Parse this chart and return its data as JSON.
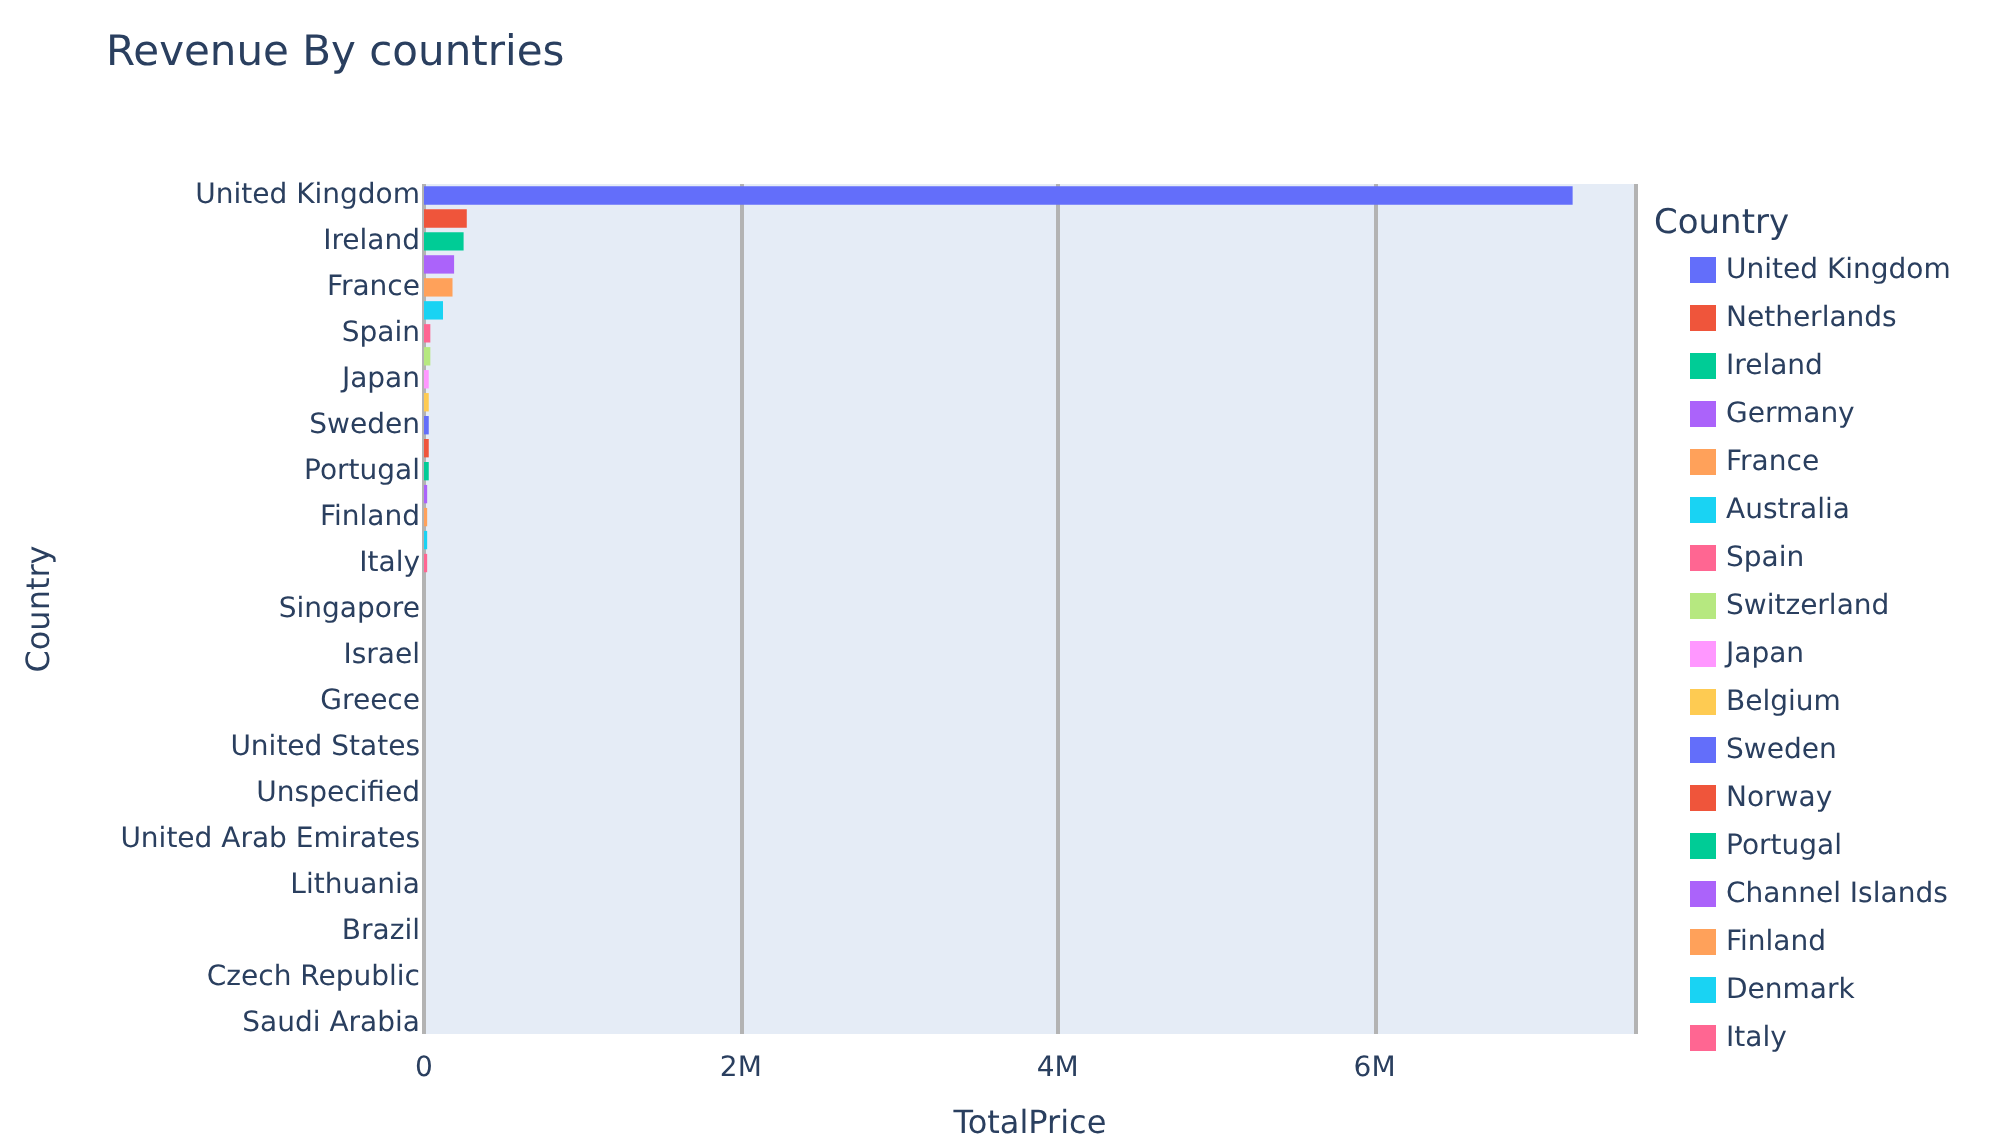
{
  "chart_data": {
    "type": "bar",
    "orientation": "horizontal",
    "stacked": true,
    "title": "Revenue By countries",
    "xlabel": "TotalPrice",
    "ylabel": "Country",
    "legend_title": "Country",
    "legend": "right",
    "grid": "x",
    "categories": [
      "United Kingdom",
      null,
      "Ireland",
      null,
      "France",
      null,
      "Spain",
      null,
      "Japan",
      null,
      "Sweden",
      null,
      "Portugal",
      null,
      "Finland",
      null,
      "Italy",
      null,
      "Singapore",
      null,
      "Israel",
      null,
      "Greece",
      null,
      "United States",
      null,
      "Unspecified",
      null,
      "United Arab Emirates",
      null,
      "Lithuania",
      null,
      "Brazil",
      null,
      "Czech Republic",
      null,
      "Saudi Arabia"
    ],
    "xlim": [
      0,
      7650000
    ],
    "xticks": [
      0,
      {
        "value": 2000000,
        "label": "2M"
      },
      {
        "value": 4000000,
        "label": "4M"
      },
      {
        "value": 6000000,
        "label": "6M"
      }
    ],
    "series": [
      {
        "name": "United Kingdom",
        "color": "#636efa",
        "values": [
          7250000,
          null,
          null,
          null,
          null,
          null,
          null,
          null,
          null,
          null,
          null,
          null,
          null,
          null,
          null,
          null,
          null,
          null,
          null,
          null,
          null,
          null,
          null,
          null,
          null,
          null,
          null,
          null,
          null,
          null,
          null,
          null,
          null,
          null,
          null,
          null,
          null
        ]
      },
      {
        "name": "Netherlands",
        "color": "#ef553b",
        "values": [
          null,
          270000,
          null,
          null,
          null,
          null,
          null,
          null,
          null,
          null,
          null,
          null,
          null,
          null,
          null,
          null,
          null,
          null,
          null,
          null,
          null,
          null,
          null,
          null,
          null,
          null,
          null,
          null,
          null,
          null,
          null,
          null,
          null,
          null,
          null,
          null,
          null
        ]
      },
      {
        "name": "Ireland",
        "color": "#00cc96",
        "values": [
          null,
          null,
          250000,
          null,
          null,
          null,
          null,
          null,
          null,
          null,
          null,
          null,
          null,
          null,
          null,
          null,
          null,
          null,
          null,
          null,
          null,
          null,
          null,
          null,
          null,
          null,
          null,
          null,
          null,
          null,
          null,
          null,
          null,
          null,
          null,
          null,
          null
        ]
      },
      {
        "name": "Germany",
        "color": "#ab63fa",
        "values": [
          null,
          null,
          null,
          190000,
          null,
          null,
          null,
          null,
          null,
          null,
          null,
          null,
          null,
          null,
          null,
          null,
          null,
          null,
          null,
          null,
          null,
          null,
          null,
          null,
          null,
          null,
          null,
          null,
          null,
          null,
          null,
          null,
          null,
          null,
          null,
          null,
          null
        ]
      },
      {
        "name": "France",
        "color": "#ffa15a",
        "values": [
          null,
          null,
          null,
          null,
          180000,
          null,
          null,
          null,
          null,
          null,
          null,
          null,
          null,
          null,
          null,
          null,
          null,
          null,
          null,
          null,
          null,
          null,
          null,
          null,
          null,
          null,
          null,
          null,
          null,
          null,
          null,
          null,
          null,
          null,
          null,
          null,
          null
        ]
      },
      {
        "name": "Australia",
        "color": "#19d3f3",
        "values": [
          null,
          null,
          null,
          null,
          null,
          120000,
          null,
          null,
          null,
          null,
          null,
          null,
          null,
          null,
          null,
          null,
          null,
          null,
          null,
          null,
          null,
          null,
          null,
          null,
          null,
          null,
          null,
          null,
          null,
          null,
          null,
          null,
          null,
          null,
          null,
          null,
          null
        ]
      },
      {
        "name": "Spain",
        "color": "#ff6692",
        "values": [
          null,
          null,
          null,
          null,
          null,
          null,
          40000,
          null,
          null,
          null,
          null,
          null,
          null,
          null,
          null,
          null,
          null,
          null,
          null,
          null,
          null,
          null,
          null,
          null,
          null,
          null,
          null,
          null,
          null,
          null,
          null,
          null,
          null,
          null,
          null,
          null,
          null
        ]
      },
      {
        "name": "Switzerland",
        "color": "#b6e880",
        "values": [
          null,
          null,
          null,
          null,
          null,
          null,
          null,
          40000,
          null,
          null,
          null,
          null,
          null,
          null,
          null,
          null,
          null,
          null,
          null,
          null,
          null,
          null,
          null,
          null,
          null,
          null,
          null,
          null,
          null,
          null,
          null,
          null,
          null,
          null,
          null,
          null,
          null
        ]
      },
      {
        "name": "Japan",
        "color": "#ff97ff",
        "values": [
          null,
          null,
          null,
          null,
          null,
          null,
          null,
          null,
          30000,
          null,
          null,
          null,
          null,
          null,
          null,
          null,
          null,
          null,
          null,
          null,
          null,
          null,
          null,
          null,
          null,
          null,
          null,
          null,
          null,
          null,
          null,
          null,
          null,
          null,
          null,
          null,
          null
        ]
      },
      {
        "name": "Belgium",
        "color": "#fecb52",
        "values": [
          null,
          null,
          null,
          null,
          null,
          null,
          null,
          null,
          null,
          30000,
          null,
          null,
          null,
          null,
          null,
          null,
          null,
          null,
          null,
          null,
          null,
          null,
          null,
          null,
          null,
          null,
          null,
          null,
          null,
          null,
          null,
          null,
          null,
          null,
          null,
          null,
          null
        ]
      },
      {
        "name": "Sweden",
        "color": "#636efa",
        "values": [
          null,
          null,
          null,
          null,
          null,
          null,
          null,
          null,
          null,
          null,
          30000,
          null,
          null,
          null,
          null,
          null,
          null,
          null,
          null,
          null,
          null,
          null,
          null,
          null,
          null,
          null,
          null,
          null,
          null,
          null,
          null,
          null,
          null,
          null,
          null,
          null,
          null
        ]
      },
      {
        "name": "Norway",
        "color": "#ef553b",
        "values": [
          null,
          null,
          null,
          null,
          null,
          null,
          null,
          null,
          null,
          null,
          null,
          30000,
          null,
          null,
          null,
          null,
          null,
          null,
          null,
          null,
          null,
          null,
          null,
          null,
          null,
          null,
          null,
          null,
          null,
          null,
          null,
          null,
          null,
          null,
          null,
          null,
          null
        ]
      },
      {
        "name": "Portugal",
        "color": "#00cc96",
        "values": [
          null,
          null,
          null,
          null,
          null,
          null,
          null,
          null,
          null,
          null,
          null,
          null,
          30000,
          null,
          null,
          null,
          null,
          null,
          null,
          null,
          null,
          null,
          null,
          null,
          null,
          null,
          null,
          null,
          null,
          null,
          null,
          null,
          null,
          null,
          null,
          null,
          null
        ]
      },
      {
        "name": "Channel Islands",
        "color": "#ab63fa",
        "values": [
          null,
          null,
          null,
          null,
          null,
          null,
          null,
          null,
          null,
          null,
          null,
          null,
          null,
          20000,
          null,
          null,
          null,
          null,
          null,
          null,
          null,
          null,
          null,
          null,
          null,
          null,
          null,
          null,
          null,
          null,
          null,
          null,
          null,
          null,
          null,
          null,
          null
        ]
      },
      {
        "name": "Finland",
        "color": "#ffa15a",
        "values": [
          null,
          null,
          null,
          null,
          null,
          null,
          null,
          null,
          null,
          null,
          null,
          null,
          null,
          null,
          20000,
          null,
          null,
          null,
          null,
          null,
          null,
          null,
          null,
          null,
          null,
          null,
          null,
          null,
          null,
          null,
          null,
          null,
          null,
          null,
          null,
          null,
          null
        ]
      },
      {
        "name": "Denmark",
        "color": "#19d3f3",
        "values": [
          null,
          null,
          null,
          null,
          null,
          null,
          null,
          null,
          null,
          null,
          null,
          null,
          null,
          null,
          null,
          20000,
          null,
          null,
          null,
          null,
          null,
          null,
          null,
          null,
          null,
          null,
          null,
          null,
          null,
          null,
          null,
          null,
          null,
          null,
          null,
          null,
          null
        ]
      },
      {
        "name": "Italy",
        "color": "#ff6692",
        "values": [
          null,
          null,
          null,
          null,
          null,
          null,
          null,
          null,
          null,
          null,
          null,
          null,
          null,
          null,
          null,
          null,
          20000,
          null,
          null,
          null,
          null,
          null,
          null,
          null,
          null,
          null,
          null,
          null,
          null,
          null,
          null,
          null,
          null,
          null,
          null,
          null,
          null
        ]
      }
    ]
  }
}
